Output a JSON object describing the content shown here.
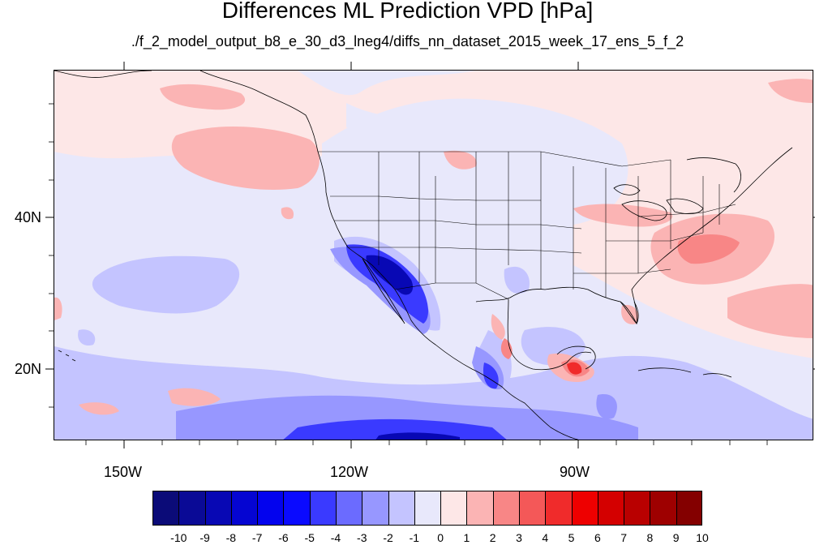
{
  "title": "Differences ML Prediction VPD [hPa]",
  "subtitle": "./f_2_model_output_b8_e_30_d3_lneg4/diffs_nn_dataset_2015_week_17_ens_5_f_2",
  "map": {
    "projection": "cylindrical-equidistant",
    "lon_range": [
      -160,
      -60
    ],
    "lat_range": [
      10,
      59
    ],
    "x_ticks": [
      {
        "lon": -150,
        "label": "150W"
      },
      {
        "lon": -120,
        "label": "120W"
      },
      {
        "lon": -90,
        "label": "90W"
      }
    ],
    "y_ticks": [
      {
        "lat": 20,
        "label": "20N"
      },
      {
        "lat": 40,
        "label": "40N"
      }
    ],
    "background_level": 0.5,
    "features": [
      "coastlines",
      "us-state-borders",
      "country-borders"
    ]
  },
  "colorbar": {
    "levels": [
      "-10",
      "-9",
      "-8",
      "-7",
      "-6",
      "-5",
      "-4",
      "-3",
      "-2",
      "-1",
      "0",
      "1",
      "2",
      "3",
      "4",
      "5",
      "6",
      "7",
      "8",
      "9",
      "10"
    ],
    "colors": [
      "#0b0b78",
      "#0a0a96",
      "#0808b4",
      "#0505d2",
      "#0303ee",
      "#0a0aff",
      "#3a3aff",
      "#6b6bff",
      "#9797ff",
      "#c4c4ff",
      "#e8e8fb",
      "#fde7e7",
      "#fbb4b4",
      "#f88686",
      "#f45858",
      "#f02b2b",
      "#ee0000",
      "#d40000",
      "#b90000",
      "#9e0000",
      "#840000"
    ]
  }
}
